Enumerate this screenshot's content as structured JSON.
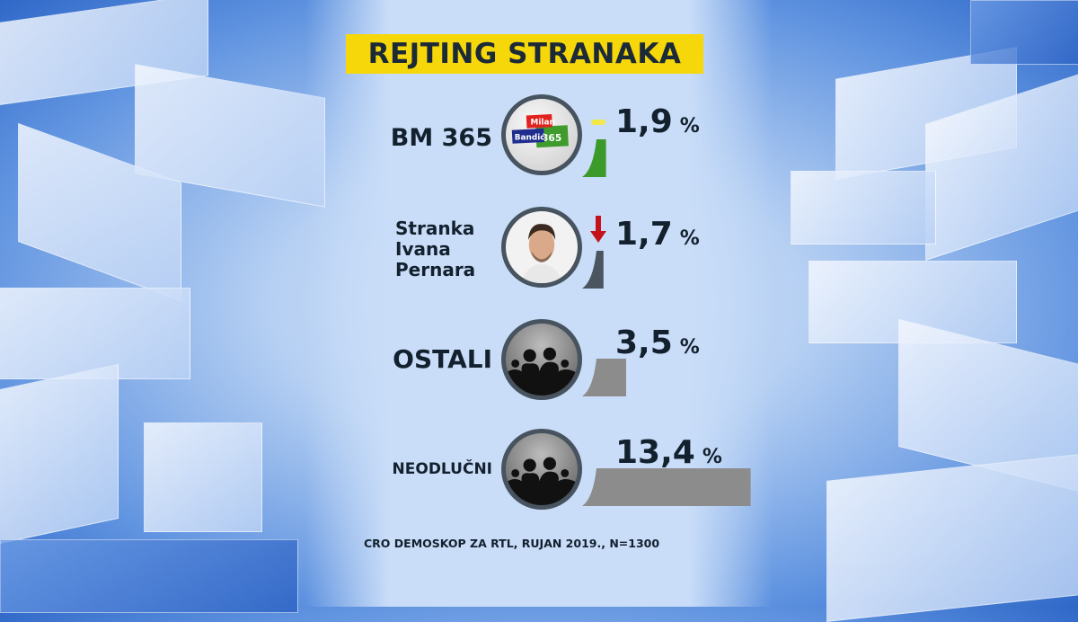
{
  "title": "REJTING STRANAKA",
  "source": "CRO DEMOSKOP ZA RTL, RUJAN 2019., N=1300",
  "logo_text": {
    "top": "Milan",
    "left": "Bandić",
    "right": "365"
  },
  "chart_data": {
    "type": "bar",
    "title": "REJTING STRANAKA",
    "orientation": "horizontal",
    "categories": [
      "BM 365",
      "Stranka Ivana Pernara",
      "OSTALI",
      "NEODLUČNI"
    ],
    "values": [
      1.9,
      1.7,
      3.5,
      13.4
    ],
    "value_labels": [
      "1,9",
      "1,7",
      "3,5",
      "13,4"
    ],
    "unit": "%",
    "trends": [
      "unchanged",
      "down",
      null,
      null
    ],
    "bar_colors": [
      "#3c9a2a",
      "#4a5560",
      "#8c8c8c",
      "#8c8c8c"
    ],
    "trend_colors": {
      "unchanged": "#f2e84a",
      "down": "#c4121a"
    }
  },
  "rows": [
    {
      "label": "BM 365",
      "image": "party-logo"
    },
    {
      "label_lines": [
        "Stranka",
        "Ivana",
        "Pernara"
      ],
      "image": "portrait"
    },
    {
      "label": "OSTALI",
      "image": "crowd-silhouette"
    },
    {
      "label": "NEODLUČNI",
      "image": "crowd-silhouette"
    }
  ]
}
